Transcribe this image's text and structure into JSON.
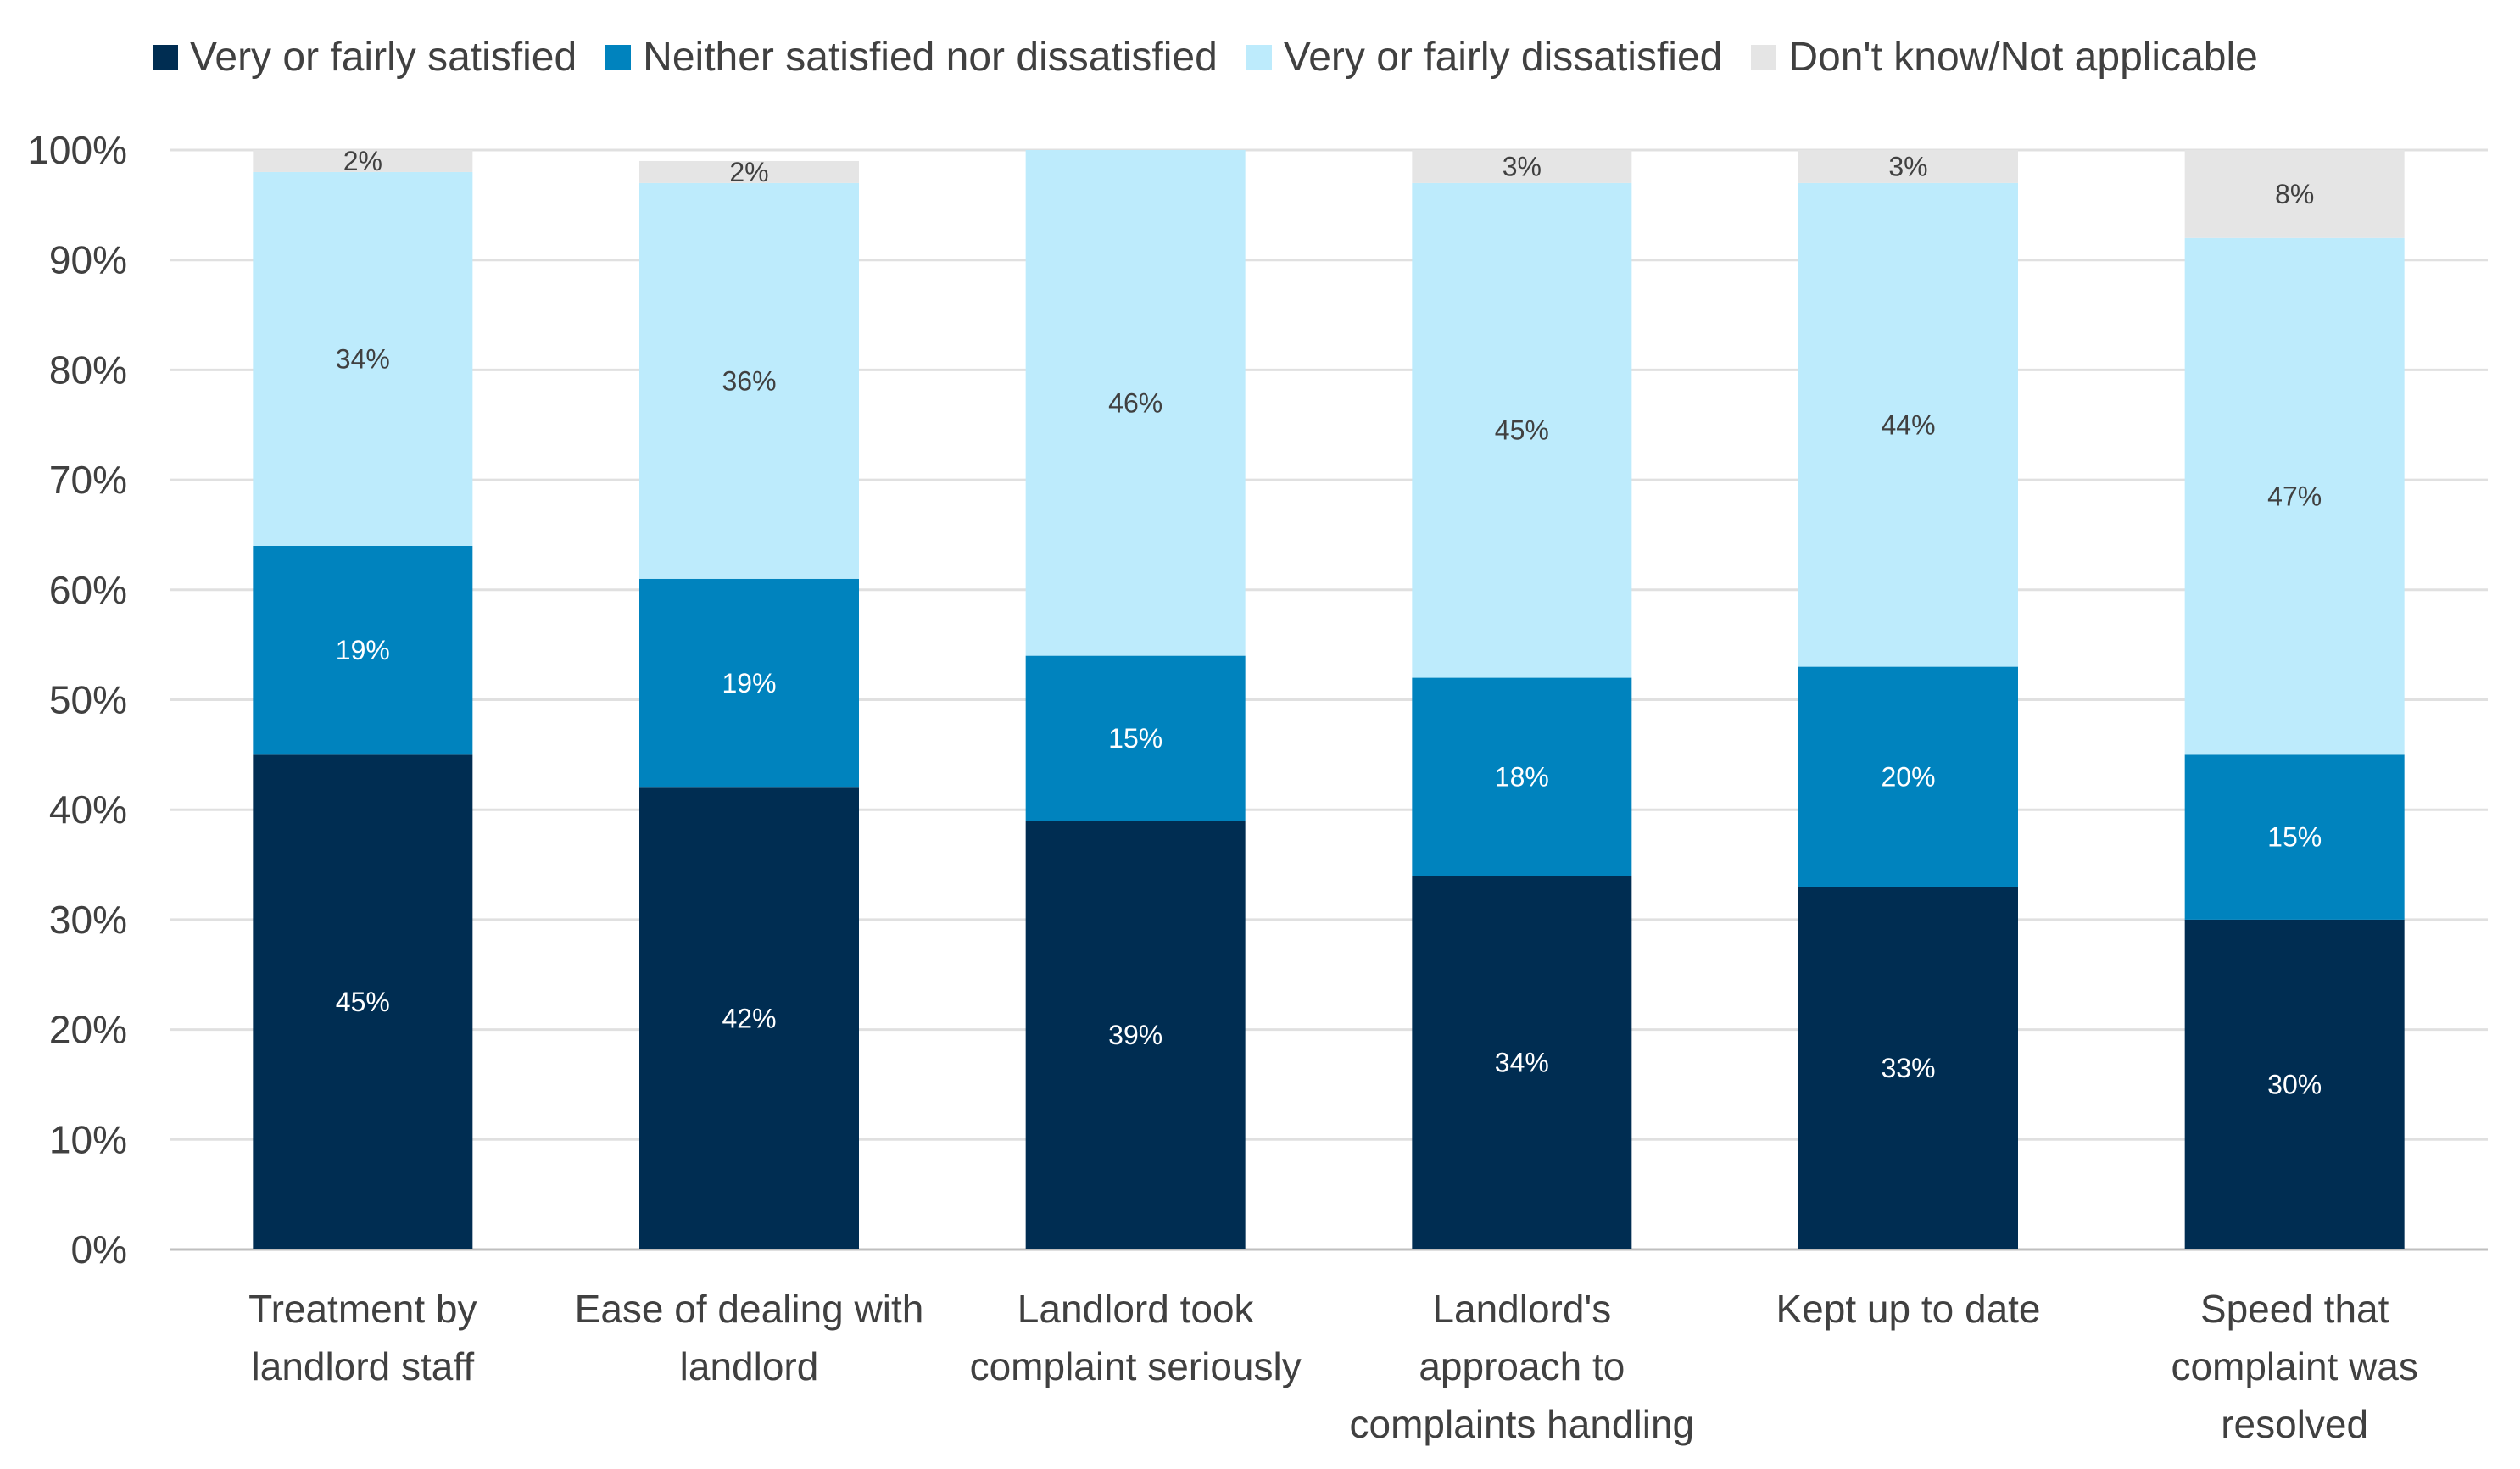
{
  "chart_data": {
    "type": "bar",
    "stacked": true,
    "categories": [
      [
        "Treatment by",
        "landlord staff"
      ],
      [
        "Ease of dealing with",
        "landlord"
      ],
      [
        "Landlord took",
        "complaint seriously"
      ],
      [
        "Landlord's",
        "approach to",
        "complaints handling"
      ],
      [
        "Kept up to date"
      ],
      [
        "Speed that",
        "complaint was",
        "resolved"
      ]
    ],
    "series": [
      {
        "name": "Very or fairly satisfied",
        "color": "#002D52",
        "label_color": "#FFFFFF",
        "values": [
          45,
          42,
          39,
          34,
          33,
          30
        ]
      },
      {
        "name": "Neither satisfied nor dissatisfied",
        "color": "#0083BE",
        "label_color": "#FFFFFF",
        "values": [
          19,
          19,
          15,
          18,
          20,
          15
        ]
      },
      {
        "name": "Very or fairly dissatisfied",
        "color": "#BDEBFC",
        "label_color": "#404040",
        "values": [
          34,
          36,
          46,
          45,
          44,
          47
        ]
      },
      {
        "name": "Don't know/Not applicable",
        "color": "#E5E5E5",
        "label_color": "#404040",
        "values": [
          2,
          2,
          0,
          3,
          3,
          8
        ]
      }
    ],
    "ylim": [
      0,
      100
    ],
    "yticks": [
      "0%",
      "10%",
      "20%",
      "30%",
      "40%",
      "50%",
      "60%",
      "70%",
      "80%",
      "90%",
      "100%"
    ],
    "grid": true,
    "legend": "top",
    "xlabel": "",
    "ylabel": ""
  }
}
